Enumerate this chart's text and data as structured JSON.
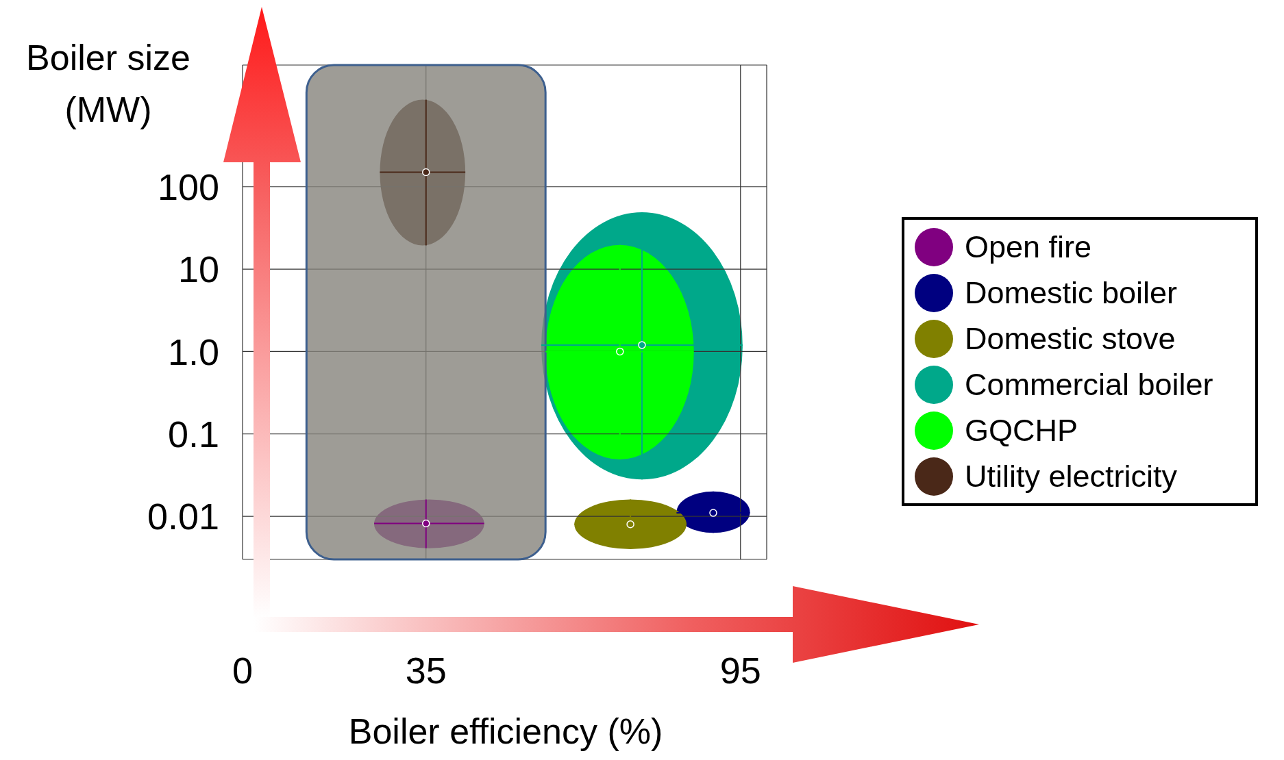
{
  "chart_data": {
    "type": "scatter",
    "xlabel": "Boiler efficiency (%)",
    "ylabel": "Boiler size (MW)",
    "xlim": [
      0,
      100
    ],
    "xticks": [
      0,
      35,
      95
    ],
    "ylim": [
      0.003,
      3000
    ],
    "yticks": [
      {
        "value": 0.01,
        "label": "0.01"
      },
      {
        "value": 0.1,
        "label": "0.1"
      },
      {
        "value": 1,
        "label": "1.0"
      },
      {
        "value": 10,
        "label": "10"
      },
      {
        "value": 100,
        "label": "100"
      }
    ],
    "log": "y",
    "grid": true,
    "legend": "right",
    "marker": "circle",
    "bands": [
      {
        "axis": "x",
        "from": 12.2,
        "to": 57.8,
        "color": "#86837c"
      }
    ],
    "series": [
      {
        "name": "Open fire",
        "color": "#800080",
        "x": [
          35
        ],
        "values": [
          0.0082
        ],
        "errors": [
          [
            0.0041,
            0.016
          ]
        ],
        "xerrors": [
          [
            25.1,
            46.1
          ]
        ]
      },
      {
        "name": "Domestic boiler",
        "color": "#000080",
        "x": [
          89.8
        ],
        "values": [
          0.011
        ],
        "errors": [
          [
            0.0063,
            0.02
          ]
        ],
        "xerrors": [
          [
            82.8,
            96.8
          ]
        ]
      },
      {
        "name": "Domestic stove",
        "color": "#808000",
        "x": [
          74
        ],
        "values": [
          0.008
        ],
        "errors": [
          [
            0.004,
            0.016
          ]
        ],
        "xerrors": [
          [
            63.3,
            84.7
          ]
        ]
      },
      {
        "name": "Commercial boiler",
        "color": "#00a88a",
        "x": [
          76.2
        ],
        "values": [
          1.2
        ],
        "errors": [
          [
            0.028,
            49
          ]
        ],
        "xerrors": [
          [
            57,
            95.4
          ]
        ]
      },
      {
        "name": "GQCHP",
        "color": "#00ff00",
        "x": [
          72
        ],
        "values": [
          1
        ],
        "errors": [
          [
            0.049,
            19.7
          ]
        ],
        "xerrors": [
          [
            57.8,
            86.1
          ]
        ]
      },
      {
        "name": "Utility electricity",
        "color": "#4a2818",
        "x": [
          35
        ],
        "values": [
          150
        ],
        "errors": [
          [
            19.4,
            1140
          ]
        ],
        "xerrors": [
          [
            26.2,
            42.5
          ]
        ]
      }
    ]
  }
}
